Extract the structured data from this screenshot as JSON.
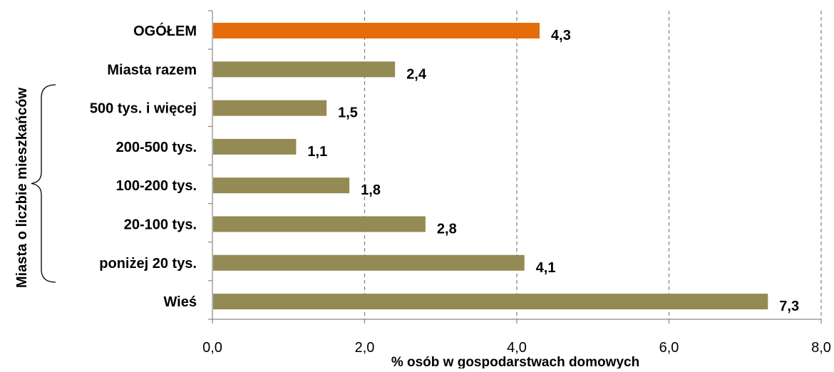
{
  "chart_data": {
    "type": "bar",
    "orientation": "horizontal",
    "categories": [
      "OGÓŁEM",
      "Miasta razem",
      "500 tys. i więcej",
      "200-500 tys.",
      "100-200 tys.",
      "20-100 tys.",
      "poniżej 20 tys.",
      "Wieś"
    ],
    "values": [
      4.3,
      2.4,
      1.5,
      1.1,
      1.8,
      2.8,
      4.1,
      7.3
    ],
    "value_labels": [
      "4,3",
      "2,4",
      "1,5",
      "1,1",
      "1,8",
      "2,8",
      "4,1",
      "7,3"
    ],
    "highlight_index": 0,
    "colors": {
      "default": "#948A54",
      "highlight": "#E46C0A",
      "axis": "#888888",
      "grid": "#7F7F7F",
      "text": "#000000"
    },
    "xlim": [
      0,
      8
    ],
    "xticks": [
      0,
      2,
      4,
      6,
      8
    ],
    "xtick_labels": [
      "0,0",
      "2,0",
      "4,0",
      "6,0",
      "8,0"
    ],
    "xlabel": "% osób w gospodarstwach domowych",
    "group_label": "Miasta o liczbie mieszkańców",
    "grid": "vertical-dashed",
    "legend": "none"
  }
}
